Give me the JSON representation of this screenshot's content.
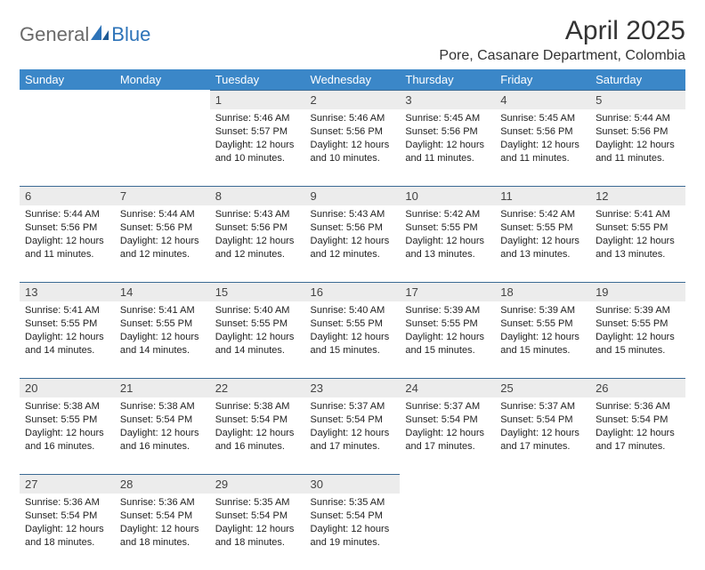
{
  "logo": {
    "part1": "General",
    "part2": "Blue"
  },
  "title": "April 2025",
  "location": "Pore, Casanare Department, Colombia",
  "colors": {
    "header_bg": "#3b87c8",
    "header_text": "#ffffff",
    "daynum_bg": "#ececec",
    "daynum_border": "#3b6a94",
    "body_text": "#222222",
    "logo_gray": "#6a6a6a",
    "logo_blue": "#2d73b8"
  },
  "weekdays": [
    "Sunday",
    "Monday",
    "Tuesday",
    "Wednesday",
    "Thursday",
    "Friday",
    "Saturday"
  ],
  "weeks": [
    [
      null,
      null,
      {
        "n": "1",
        "sr": "Sunrise: 5:46 AM",
        "ss": "Sunset: 5:57 PM",
        "dl1": "Daylight: 12 hours",
        "dl2": "and 10 minutes."
      },
      {
        "n": "2",
        "sr": "Sunrise: 5:46 AM",
        "ss": "Sunset: 5:56 PM",
        "dl1": "Daylight: 12 hours",
        "dl2": "and 10 minutes."
      },
      {
        "n": "3",
        "sr": "Sunrise: 5:45 AM",
        "ss": "Sunset: 5:56 PM",
        "dl1": "Daylight: 12 hours",
        "dl2": "and 11 minutes."
      },
      {
        "n": "4",
        "sr": "Sunrise: 5:45 AM",
        "ss": "Sunset: 5:56 PM",
        "dl1": "Daylight: 12 hours",
        "dl2": "and 11 minutes."
      },
      {
        "n": "5",
        "sr": "Sunrise: 5:44 AM",
        "ss": "Sunset: 5:56 PM",
        "dl1": "Daylight: 12 hours",
        "dl2": "and 11 minutes."
      }
    ],
    [
      {
        "n": "6",
        "sr": "Sunrise: 5:44 AM",
        "ss": "Sunset: 5:56 PM",
        "dl1": "Daylight: 12 hours",
        "dl2": "and 11 minutes."
      },
      {
        "n": "7",
        "sr": "Sunrise: 5:44 AM",
        "ss": "Sunset: 5:56 PM",
        "dl1": "Daylight: 12 hours",
        "dl2": "and 12 minutes."
      },
      {
        "n": "8",
        "sr": "Sunrise: 5:43 AM",
        "ss": "Sunset: 5:56 PM",
        "dl1": "Daylight: 12 hours",
        "dl2": "and 12 minutes."
      },
      {
        "n": "9",
        "sr": "Sunrise: 5:43 AM",
        "ss": "Sunset: 5:56 PM",
        "dl1": "Daylight: 12 hours",
        "dl2": "and 12 minutes."
      },
      {
        "n": "10",
        "sr": "Sunrise: 5:42 AM",
        "ss": "Sunset: 5:55 PM",
        "dl1": "Daylight: 12 hours",
        "dl2": "and 13 minutes."
      },
      {
        "n": "11",
        "sr": "Sunrise: 5:42 AM",
        "ss": "Sunset: 5:55 PM",
        "dl1": "Daylight: 12 hours",
        "dl2": "and 13 minutes."
      },
      {
        "n": "12",
        "sr": "Sunrise: 5:41 AM",
        "ss": "Sunset: 5:55 PM",
        "dl1": "Daylight: 12 hours",
        "dl2": "and 13 minutes."
      }
    ],
    [
      {
        "n": "13",
        "sr": "Sunrise: 5:41 AM",
        "ss": "Sunset: 5:55 PM",
        "dl1": "Daylight: 12 hours",
        "dl2": "and 14 minutes."
      },
      {
        "n": "14",
        "sr": "Sunrise: 5:41 AM",
        "ss": "Sunset: 5:55 PM",
        "dl1": "Daylight: 12 hours",
        "dl2": "and 14 minutes."
      },
      {
        "n": "15",
        "sr": "Sunrise: 5:40 AM",
        "ss": "Sunset: 5:55 PM",
        "dl1": "Daylight: 12 hours",
        "dl2": "and 14 minutes."
      },
      {
        "n": "16",
        "sr": "Sunrise: 5:40 AM",
        "ss": "Sunset: 5:55 PM",
        "dl1": "Daylight: 12 hours",
        "dl2": "and 15 minutes."
      },
      {
        "n": "17",
        "sr": "Sunrise: 5:39 AM",
        "ss": "Sunset: 5:55 PM",
        "dl1": "Daylight: 12 hours",
        "dl2": "and 15 minutes."
      },
      {
        "n": "18",
        "sr": "Sunrise: 5:39 AM",
        "ss": "Sunset: 5:55 PM",
        "dl1": "Daylight: 12 hours",
        "dl2": "and 15 minutes."
      },
      {
        "n": "19",
        "sr": "Sunrise: 5:39 AM",
        "ss": "Sunset: 5:55 PM",
        "dl1": "Daylight: 12 hours",
        "dl2": "and 15 minutes."
      }
    ],
    [
      {
        "n": "20",
        "sr": "Sunrise: 5:38 AM",
        "ss": "Sunset: 5:55 PM",
        "dl1": "Daylight: 12 hours",
        "dl2": "and 16 minutes."
      },
      {
        "n": "21",
        "sr": "Sunrise: 5:38 AM",
        "ss": "Sunset: 5:54 PM",
        "dl1": "Daylight: 12 hours",
        "dl2": "and 16 minutes."
      },
      {
        "n": "22",
        "sr": "Sunrise: 5:38 AM",
        "ss": "Sunset: 5:54 PM",
        "dl1": "Daylight: 12 hours",
        "dl2": "and 16 minutes."
      },
      {
        "n": "23",
        "sr": "Sunrise: 5:37 AM",
        "ss": "Sunset: 5:54 PM",
        "dl1": "Daylight: 12 hours",
        "dl2": "and 17 minutes."
      },
      {
        "n": "24",
        "sr": "Sunrise: 5:37 AM",
        "ss": "Sunset: 5:54 PM",
        "dl1": "Daylight: 12 hours",
        "dl2": "and 17 minutes."
      },
      {
        "n": "25",
        "sr": "Sunrise: 5:37 AM",
        "ss": "Sunset: 5:54 PM",
        "dl1": "Daylight: 12 hours",
        "dl2": "and 17 minutes."
      },
      {
        "n": "26",
        "sr": "Sunrise: 5:36 AM",
        "ss": "Sunset: 5:54 PM",
        "dl1": "Daylight: 12 hours",
        "dl2": "and 17 minutes."
      }
    ],
    [
      {
        "n": "27",
        "sr": "Sunrise: 5:36 AM",
        "ss": "Sunset: 5:54 PM",
        "dl1": "Daylight: 12 hours",
        "dl2": "and 18 minutes."
      },
      {
        "n": "28",
        "sr": "Sunrise: 5:36 AM",
        "ss": "Sunset: 5:54 PM",
        "dl1": "Daylight: 12 hours",
        "dl2": "and 18 minutes."
      },
      {
        "n": "29",
        "sr": "Sunrise: 5:35 AM",
        "ss": "Sunset: 5:54 PM",
        "dl1": "Daylight: 12 hours",
        "dl2": "and 18 minutes."
      },
      {
        "n": "30",
        "sr": "Sunrise: 5:35 AM",
        "ss": "Sunset: 5:54 PM",
        "dl1": "Daylight: 12 hours",
        "dl2": "and 19 minutes."
      },
      null,
      null,
      null
    ]
  ]
}
